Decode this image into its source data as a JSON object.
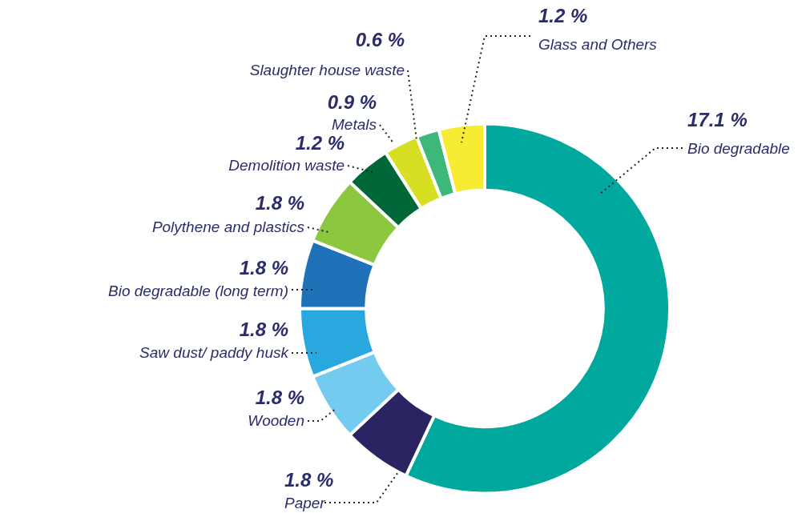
{
  "chart_data": {
    "type": "donut",
    "categories": [
      "Bio degradable",
      "Paper",
      "Wooden",
      "Saw dust/ paddy husk",
      "Bio degradable (long term)",
      "Polythene and plastics",
      "Demolition waste",
      "Metals",
      "Slaughter house waste",
      "Glass and Others"
    ],
    "values": [
      17.1,
      1.8,
      1.8,
      1.8,
      1.8,
      1.8,
      1.2,
      0.9,
      0.6,
      1.2
    ],
    "value_labels": [
      "17.1 %",
      "1.8 %",
      "1.8 %",
      "1.8 %",
      "1.8 %",
      "1.8 %",
      "1.2 %",
      "0.9 %",
      "0.6 %",
      "1.2 %"
    ],
    "colors": [
      "#01a89e",
      "#2a2562",
      "#73cbef",
      "#29a8e0",
      "#1f71b8",
      "#8dc63f",
      "#006838",
      "#d7df23",
      "#3cb878",
      "#f7ec31"
    ],
    "legend": false
  }
}
